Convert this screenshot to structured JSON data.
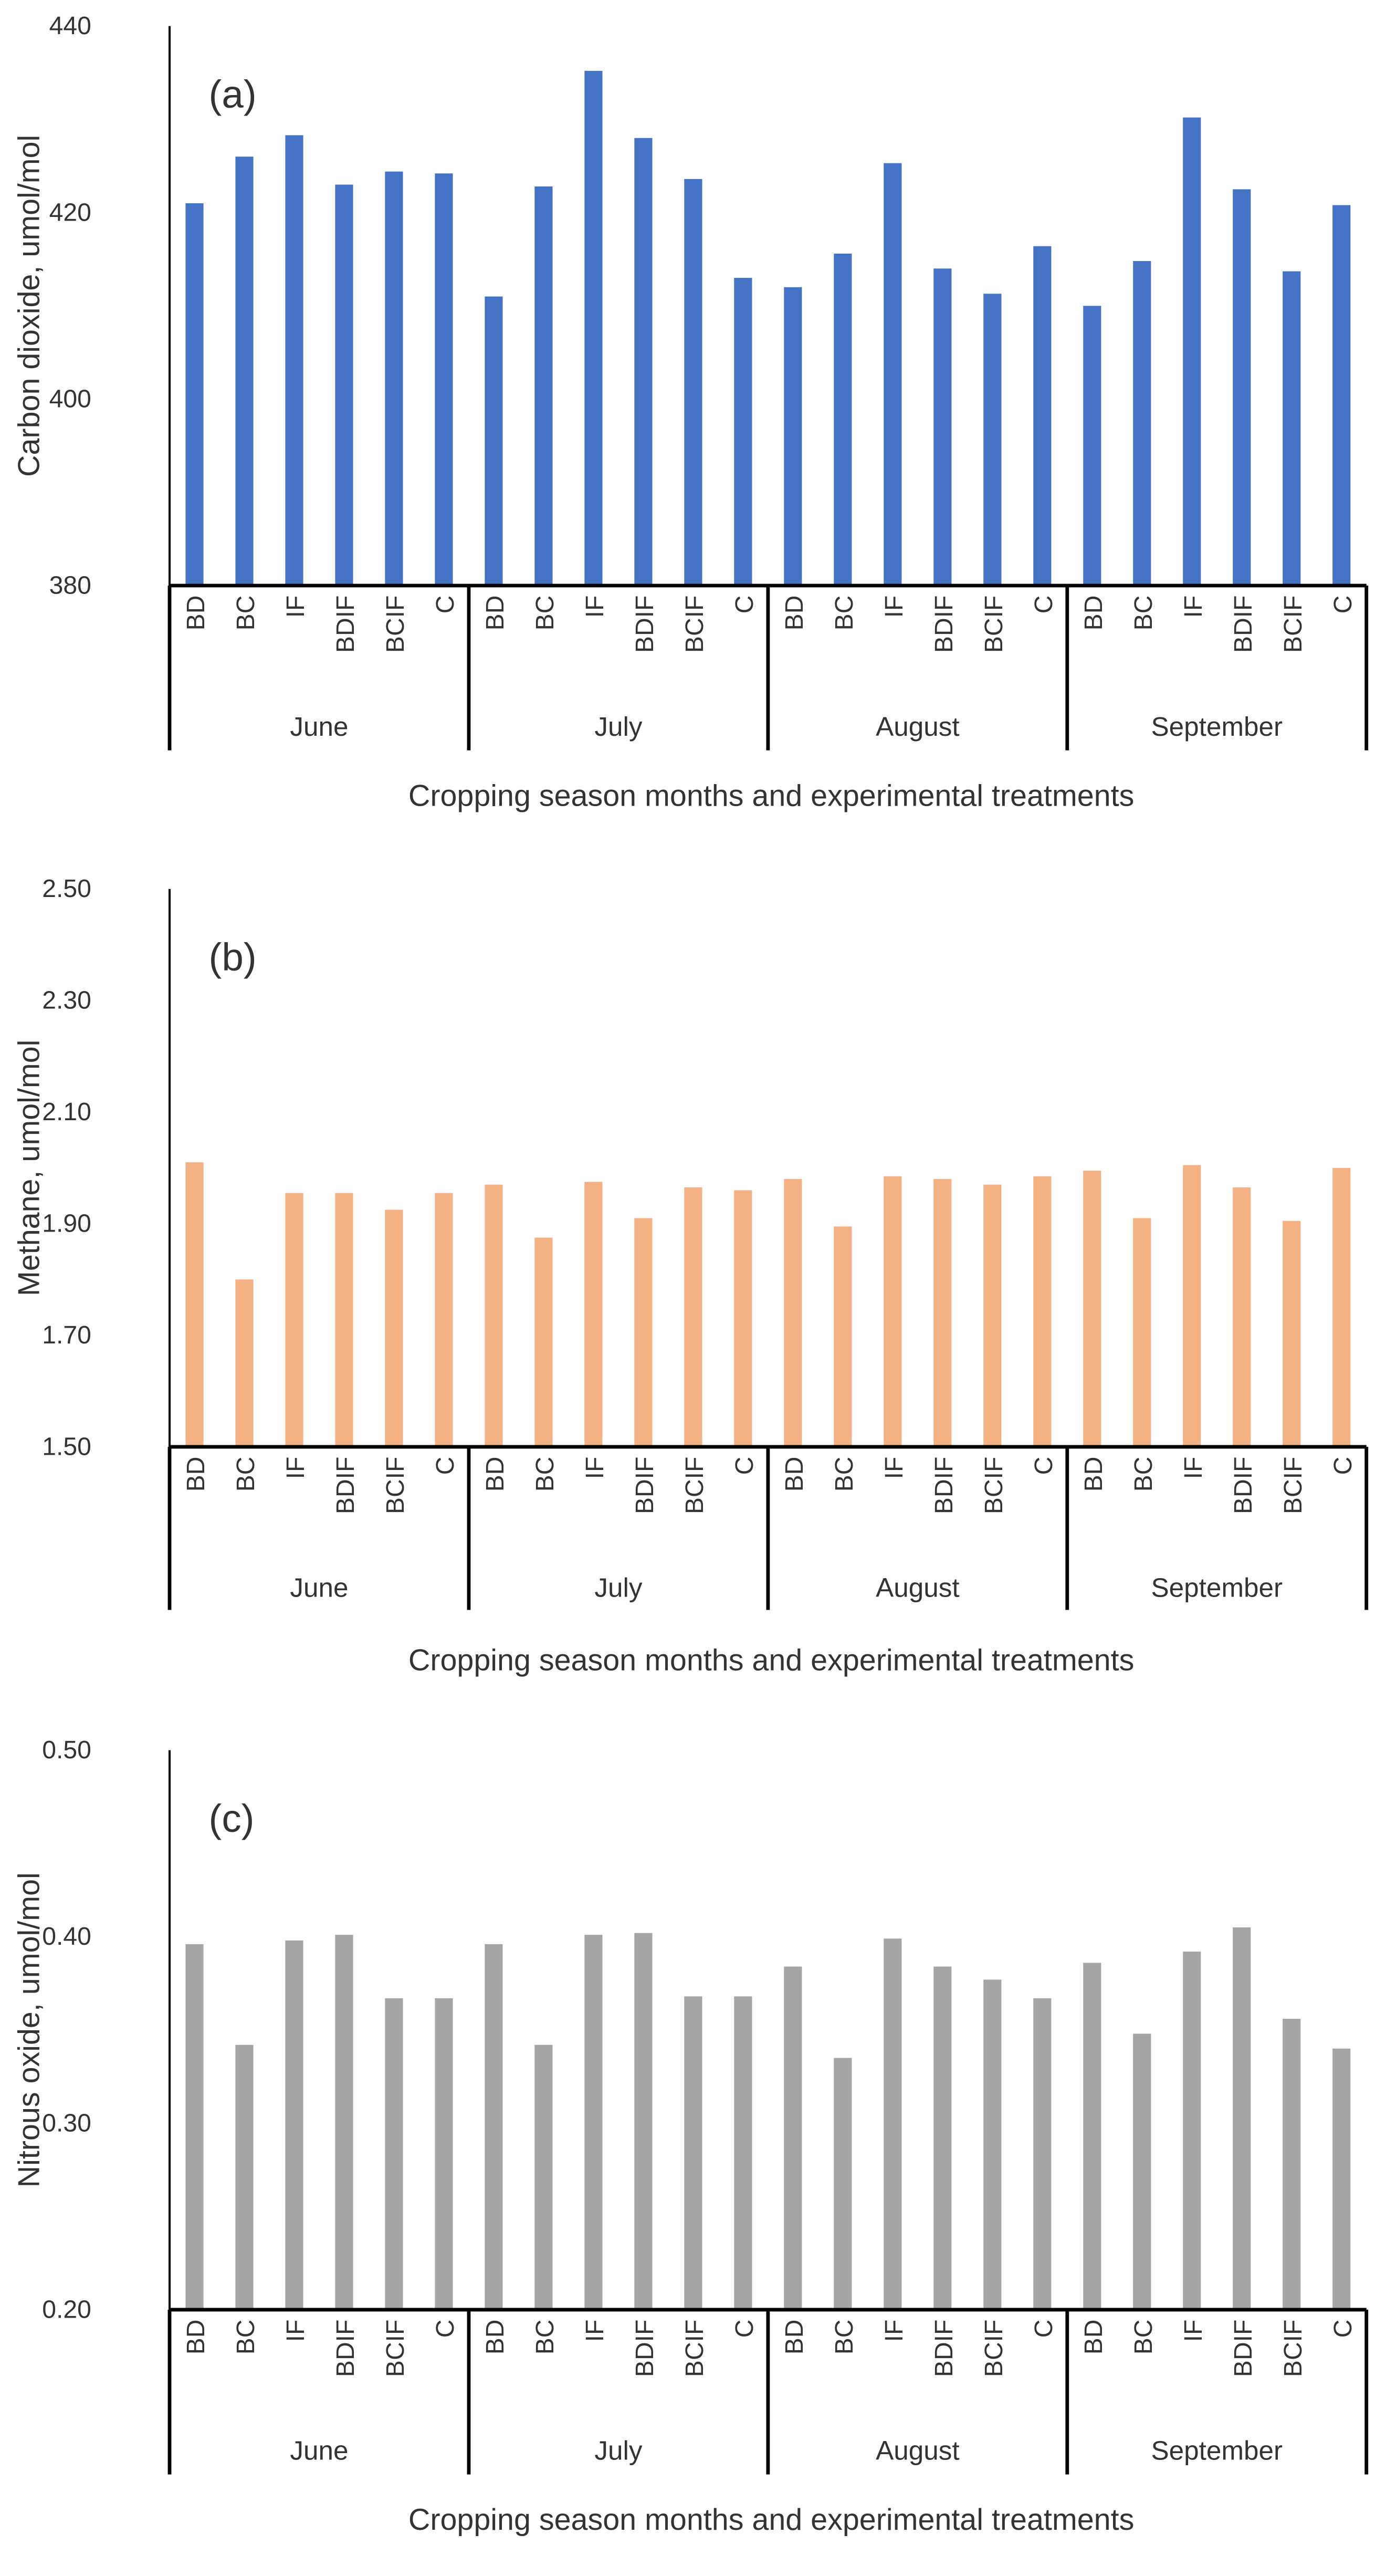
{
  "chart_data": [
    {
      "type": "bar",
      "panel_label": "(a)",
      "ylabel": "Carbon dioxide, umol/mol",
      "xlabel": "Cropping season months and experimental treatments",
      "ylim": [
        380,
        440
      ],
      "yticks": [
        380,
        400,
        420,
        440
      ],
      "ytick_labels": [
        "380",
        "400",
        "420",
        "440"
      ],
      "grid": false,
      "color": "#4472C4",
      "groups": [
        "June",
        "July",
        "August",
        "September"
      ],
      "categories": [
        "BD",
        "BC",
        "IF",
        "BDIF",
        "BCIF",
        "C"
      ],
      "values": [
        [
          421,
          426,
          428.3,
          423,
          424.4,
          424.2
        ],
        [
          411,
          422.8,
          435.2,
          428,
          423.6,
          413
        ],
        [
          412,
          415.6,
          425.3,
          414,
          411.3,
          416.4
        ],
        [
          410,
          414.8,
          430.2,
          422.5,
          413.7,
          420.8
        ]
      ]
    },
    {
      "type": "bar",
      "panel_label": "(b)",
      "ylabel": "Methane, umol/mol",
      "xlabel": "Cropping season months and experimental treatments",
      "ylim": [
        1.5,
        2.5
      ],
      "yticks": [
        1.5,
        1.7,
        1.9,
        2.1,
        2.3,
        2.5
      ],
      "ytick_labels": [
        "1.50",
        "1.70",
        "1.90",
        "2.10",
        "2.30",
        "2.50"
      ],
      "grid": false,
      "color": "#F4B183",
      "groups": [
        "June",
        "July",
        "August",
        "September"
      ],
      "categories": [
        "BD",
        "BC",
        "IF",
        "BDIF",
        "BCIF",
        "C"
      ],
      "values": [
        [
          2.01,
          1.8,
          1.955,
          1.955,
          1.925,
          1.955
        ],
        [
          1.97,
          1.875,
          1.975,
          1.91,
          1.965,
          1.96
        ],
        [
          1.98,
          1.895,
          1.985,
          1.98,
          1.97,
          1.985
        ],
        [
          1.995,
          1.91,
          2.005,
          1.965,
          1.905,
          2.0
        ]
      ]
    },
    {
      "type": "bar",
      "panel_label": "(c)",
      "ylabel": "Nitrous oxide, umol/mol",
      "xlabel": "Cropping season months and experimental treatments",
      "ylim": [
        0.2,
        0.5
      ],
      "yticks": [
        0.2,
        0.3,
        0.4,
        0.5
      ],
      "ytick_labels": [
        "0.20",
        "0.30",
        "0.40",
        "0.50"
      ],
      "grid": false,
      "color": "#A5A5A5",
      "groups": [
        "June",
        "July",
        "August",
        "September"
      ],
      "categories": [
        "BD",
        "BC",
        "IF",
        "BDIF",
        "BCIF",
        "C"
      ],
      "values": [
        [
          0.396,
          0.342,
          0.398,
          0.401,
          0.367,
          0.367
        ],
        [
          0.396,
          0.342,
          0.401,
          0.402,
          0.368,
          0.368
        ],
        [
          0.384,
          0.335,
          0.399,
          0.384,
          0.377,
          0.367
        ],
        [
          0.386,
          0.348,
          0.392,
          0.405,
          0.356,
          0.34
        ]
      ]
    }
  ]
}
